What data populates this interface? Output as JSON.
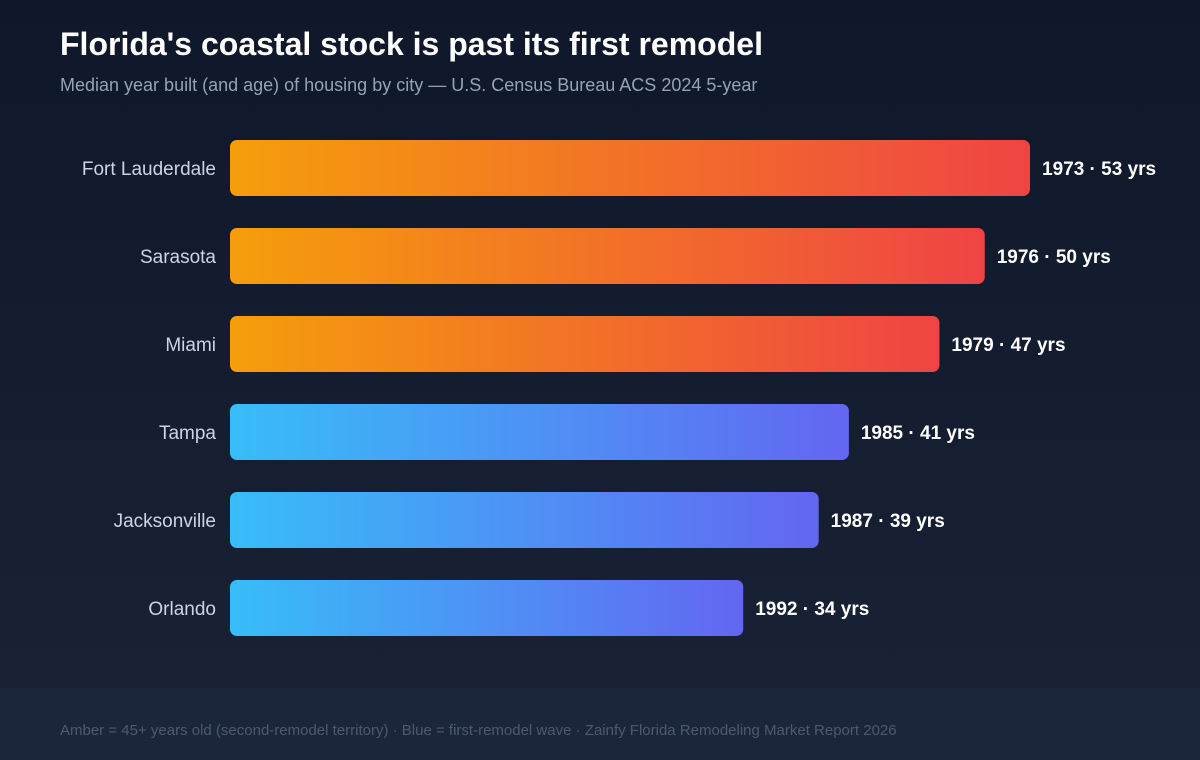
{
  "header": {
    "title": "Florida's coastal stock is past its first remodel",
    "subtitle": "Median year built (and age) of housing by city — U.S. Census Bureau ACS 2024 5-year"
  },
  "footer": {
    "note": "Amber = 45+ years old (second-remodel territory) · Blue = first-remodel wave · Zainfy Florida Remodeling Market Report 2026"
  },
  "colors": {
    "amber_start": "#f59e0b",
    "amber_end": "#ef4444",
    "blue_start": "#38bdf8",
    "blue_end": "#6366f1"
  },
  "chart_data": {
    "type": "bar",
    "orientation": "horizontal",
    "title": "Florida's coastal stock is past its first remodel",
    "subtitle": "Median year built (and age) of housing by city — U.S. Census Bureau ACS 2024 5-year",
    "categories": [
      "Fort Lauderdale",
      "Sarasota",
      "Miami",
      "Tampa",
      "Jacksonville",
      "Orlando"
    ],
    "values": [
      53,
      50,
      47,
      41,
      39,
      34
    ],
    "median_year_built": [
      1973,
      1976,
      1979,
      1985,
      1987,
      1992
    ],
    "value_labels": [
      "1973 · 53 yrs",
      "1976 · 50 yrs",
      "1979 · 47 yrs",
      "1985 · 41 yrs",
      "1987 · 39 yrs",
      "1992 · 34 yrs"
    ],
    "groups": [
      "amber",
      "amber",
      "amber",
      "blue",
      "blue",
      "blue"
    ],
    "xlim": [
      0,
      53
    ],
    "grid": false,
    "legend": "none"
  }
}
